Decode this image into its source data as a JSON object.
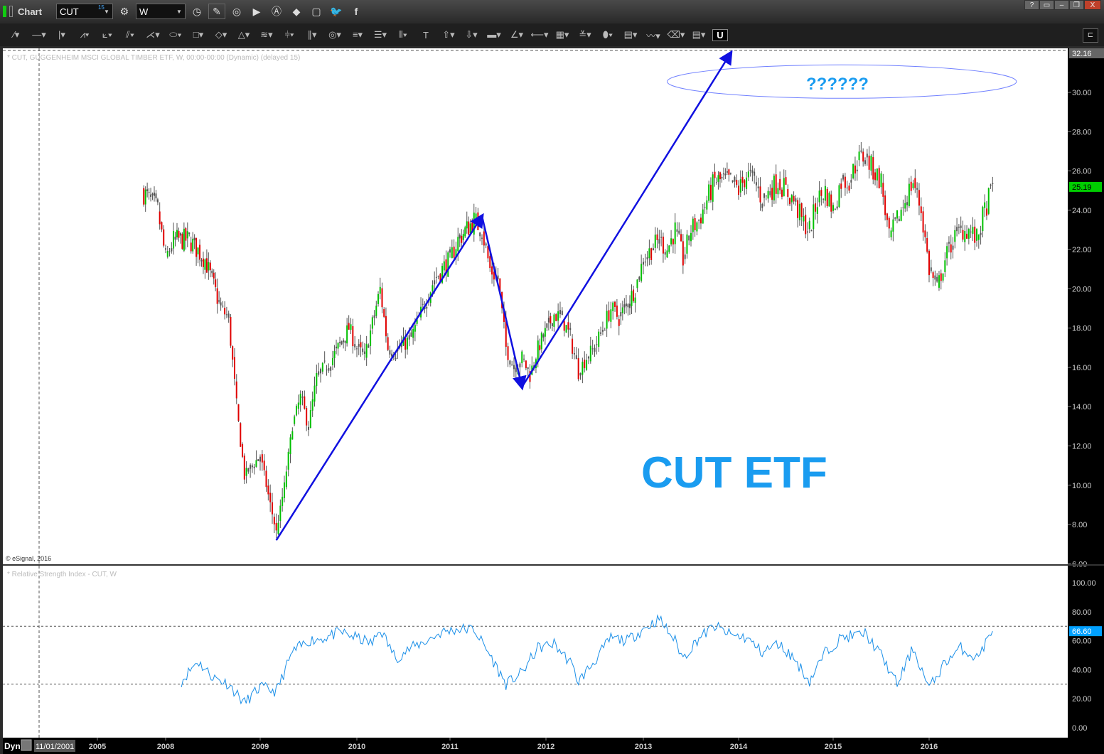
{
  "window": {
    "title": "Chart",
    "symbol": "CUT",
    "symbol_badge": "15",
    "interval": "W",
    "buttons": [
      "help",
      "window-menu",
      "minimize",
      "restore",
      "close"
    ],
    "help_label": "?",
    "close_label": "X"
  },
  "toolbar_icons": [
    "gear-icon",
    "clock-icon",
    "pencil-icon",
    "study-icon",
    "play-icon",
    "alert-icon",
    "link-icon",
    "comment-icon",
    "twitter-icon",
    "facebook-icon"
  ],
  "drawing_tools": [
    "line",
    "horizontal-line",
    "vertical-line",
    "zigzag",
    "fan",
    "pitchfork",
    "gann-fan",
    "ellipse",
    "rectangle",
    "diamond",
    "triangle",
    "channel",
    "cycle",
    "parallel",
    "circles",
    "fibonacci",
    "lines",
    "vertical-lines",
    "text",
    "arrow-up",
    "arrow-down",
    "bar",
    "angle",
    "retrace",
    "grid",
    "moe",
    "oval",
    "pti",
    "wave",
    "eraser",
    "notes",
    "magnet"
  ],
  "text_tool_label": "T",
  "magnet_label": "U",
  "price_pane": {
    "title": "* CUT, GUGGENHEIM MSCI GLOBAL TIMBER ETF, W, 00:00-00:00 (Dynamic) (delayed 15)",
    "copyright": "© eSignal, 2016",
    "last_price": "25.19",
    "last_price_color": "#00cc00",
    "top_label": "32.16"
  },
  "rsi_pane": {
    "title": "* Relative Strength Index - CUT, W",
    "last_value": "66.60",
    "value_color": "#00a0ff"
  },
  "bottom_bar": {
    "mode": "Dyn",
    "date": "11/01/2001"
  },
  "annotations": {
    "question": "??????",
    "label": "CUT ETF",
    "color": "#1a9cf0",
    "arrow_color": "#1010e0"
  },
  "chart_data": [
    {
      "type": "candlestick",
      "name": "CUT",
      "ylim": [
        6,
        32.16
      ],
      "yticks": [
        "6.00",
        "8.00",
        "10.00",
        "12.00",
        "14.00",
        "16.00",
        "18.00",
        "20.00",
        "22.00",
        "24.00",
        "26.00",
        "28.00",
        "30.00"
      ],
      "xticks": [
        "2005",
        "2008",
        "2009",
        "2010",
        "2011",
        "2012",
        "2013",
        "2014",
        "2015",
        "2016"
      ],
      "up_color": "#00c000",
      "down_color": "#e00000",
      "neutral_color": "#555555",
      "monthly_close": [
        [
          "2007-10",
          25
        ],
        [
          "2007-12",
          24
        ],
        [
          "2008-01",
          21.5
        ],
        [
          "2008-02",
          22.5
        ],
        [
          "2008-04",
          22.5
        ],
        [
          "2008-06",
          21.5
        ],
        [
          "2008-08",
          19
        ],
        [
          "2008-09",
          18.5
        ],
        [
          "2008-10",
          14
        ],
        [
          "2008-11",
          10.5
        ],
        [
          "2008-12",
          11
        ],
        [
          "2009-01",
          11.5
        ],
        [
          "2009-02",
          9.5
        ],
        [
          "2009-03",
          7.6
        ],
        [
          "2009-04",
          10
        ],
        [
          "2009-05",
          13
        ],
        [
          "2009-06",
          14.5
        ],
        [
          "2009-07",
          13
        ],
        [
          "2009-08",
          15.5
        ],
        [
          "2009-09",
          16
        ],
        [
          "2009-10",
          16.5
        ],
        [
          "2009-12",
          18
        ],
        [
          "2010-01",
          17
        ],
        [
          "2010-02",
          16.5
        ],
        [
          "2010-04",
          20
        ],
        [
          "2010-05",
          17
        ],
        [
          "2010-06",
          16.8
        ],
        [
          "2010-08",
          17.5
        ],
        [
          "2010-09",
          18.5
        ],
        [
          "2010-10",
          19.5
        ],
        [
          "2010-11",
          20.5
        ],
        [
          "2010-12",
          21
        ],
        [
          "2011-01",
          21.5
        ],
        [
          "2011-02",
          22.5
        ],
        [
          "2011-04",
          23.5
        ],
        [
          "2011-05",
          23
        ],
        [
          "2011-06",
          21
        ],
        [
          "2011-07",
          20.5
        ],
        [
          "2011-08",
          17
        ],
        [
          "2011-09",
          16
        ],
        [
          "2011-10",
          16.5
        ],
        [
          "2011-11",
          15.6
        ],
        [
          "2011-12",
          17
        ],
        [
          "2012-02",
          18.7
        ],
        [
          "2012-03",
          18.5
        ],
        [
          "2012-04",
          17.5
        ],
        [
          "2012-05",
          15.8
        ],
        [
          "2012-06",
          16.5
        ],
        [
          "2012-07",
          17
        ],
        [
          "2012-08",
          18
        ],
        [
          "2012-09",
          19
        ],
        [
          "2012-10",
          18.5
        ],
        [
          "2012-12",
          20
        ],
        [
          "2013-01",
          21.5
        ],
        [
          "2013-02",
          22
        ],
        [
          "2013-03",
          22.5
        ],
        [
          "2013-04",
          22
        ],
        [
          "2013-05",
          23
        ],
        [
          "2013-06",
          21.5
        ],
        [
          "2013-07",
          23
        ],
        [
          "2013-08",
          23.5
        ],
        [
          "2013-09",
          24.5
        ],
        [
          "2013-10",
          25.5
        ],
        [
          "2013-12",
          25.5
        ],
        [
          "2014-01",
          25
        ],
        [
          "2014-02",
          25.8
        ],
        [
          "2014-03",
          25.5
        ],
        [
          "2014-04",
          24.5
        ],
        [
          "2014-05",
          25
        ],
        [
          "2014-06",
          25.5
        ],
        [
          "2014-07",
          25
        ],
        [
          "2014-08",
          24.5
        ],
        [
          "2014-09",
          23.5
        ],
        [
          "2014-10",
          23
        ],
        [
          "2014-11",
          24.5
        ],
        [
          "2014-12",
          25
        ],
        [
          "2015-01",
          24
        ],
        [
          "2015-02",
          25.5
        ],
        [
          "2015-03",
          25.5
        ],
        [
          "2015-04",
          26.5
        ],
        [
          "2015-05",
          26.8
        ],
        [
          "2015-06",
          26
        ],
        [
          "2015-07",
          25.5
        ],
        [
          "2015-08",
          22.5
        ],
        [
          "2015-09",
          23.5
        ],
        [
          "2015-10",
          24.5
        ],
        [
          "2015-11",
          25.5
        ],
        [
          "2015-12",
          24
        ],
        [
          "2016-01",
          21
        ],
        [
          "2016-02",
          20
        ],
        [
          "2016-03",
          21.5
        ],
        [
          "2016-04",
          22.5
        ],
        [
          "2016-05",
          23
        ],
        [
          "2016-06",
          23
        ],
        [
          "2016-07",
          22.5
        ],
        [
          "2016-08",
          24
        ],
        [
          "2016-09",
          25.19
        ]
      ],
      "trend_arrows": [
        [
          "2009-03",
          7.2
        ],
        [
          "2011-05",
          23.7
        ],
        [
          "2011-10",
          15.0
        ],
        [
          "2013-12",
          32.0
        ]
      ],
      "target_zone": {
        "from": "2013-04",
        "to": "2016-12",
        "low": 29.7,
        "high": 31.4
      }
    },
    {
      "type": "line",
      "name": "Relative Strength Index",
      "ylim": [
        0,
        110
      ],
      "yticks": [
        "0.00",
        "20.00",
        "40.00",
        "60.00",
        "80.00",
        "100.00"
      ],
      "levels": [
        30,
        70
      ],
      "line_color": "#1a8fe8",
      "monthly": [
        [
          "2008-03",
          32
        ],
        [
          "2008-05",
          46
        ],
        [
          "2008-07",
          35
        ],
        [
          "2008-09",
          30
        ],
        [
          "2008-11",
          17
        ],
        [
          "2009-01",
          28
        ],
        [
          "2009-03",
          25
        ],
        [
          "2009-05",
          52
        ],
        [
          "2009-07",
          60
        ],
        [
          "2009-09",
          62
        ],
        [
          "2009-11",
          66
        ],
        [
          "2010-01",
          62
        ],
        [
          "2010-03",
          58
        ],
        [
          "2010-04",
          68
        ],
        [
          "2010-06",
          48
        ],
        [
          "2010-08",
          55
        ],
        [
          "2010-10",
          60
        ],
        [
          "2010-12",
          66
        ],
        [
          "2011-02",
          68
        ],
        [
          "2011-04",
          68
        ],
        [
          "2011-06",
          50
        ],
        [
          "2011-08",
          30
        ],
        [
          "2011-10",
          38
        ],
        [
          "2011-12",
          55
        ],
        [
          "2012-02",
          58
        ],
        [
          "2012-04",
          45
        ],
        [
          "2012-05",
          32
        ],
        [
          "2012-07",
          46
        ],
        [
          "2012-09",
          62
        ],
        [
          "2012-11",
          60
        ],
        [
          "2013-01",
          68
        ],
        [
          "2013-03",
          75
        ],
        [
          "2013-05",
          60
        ],
        [
          "2013-06",
          48
        ],
        [
          "2013-08",
          62
        ],
        [
          "2013-10",
          70
        ],
        [
          "2013-12",
          64
        ],
        [
          "2014-02",
          62
        ],
        [
          "2014-04",
          52
        ],
        [
          "2014-06",
          58
        ],
        [
          "2014-08",
          48
        ],
        [
          "2014-10",
          32
        ],
        [
          "2014-12",
          52
        ],
        [
          "2015-02",
          62
        ],
        [
          "2015-05",
          65
        ],
        [
          "2015-07",
          50
        ],
        [
          "2015-09",
          30
        ],
        [
          "2015-11",
          55
        ],
        [
          "2016-01",
          27
        ],
        [
          "2016-03",
          45
        ],
        [
          "2016-05",
          55
        ],
        [
          "2016-07",
          48
        ],
        [
          "2016-09",
          66.6
        ]
      ]
    }
  ]
}
